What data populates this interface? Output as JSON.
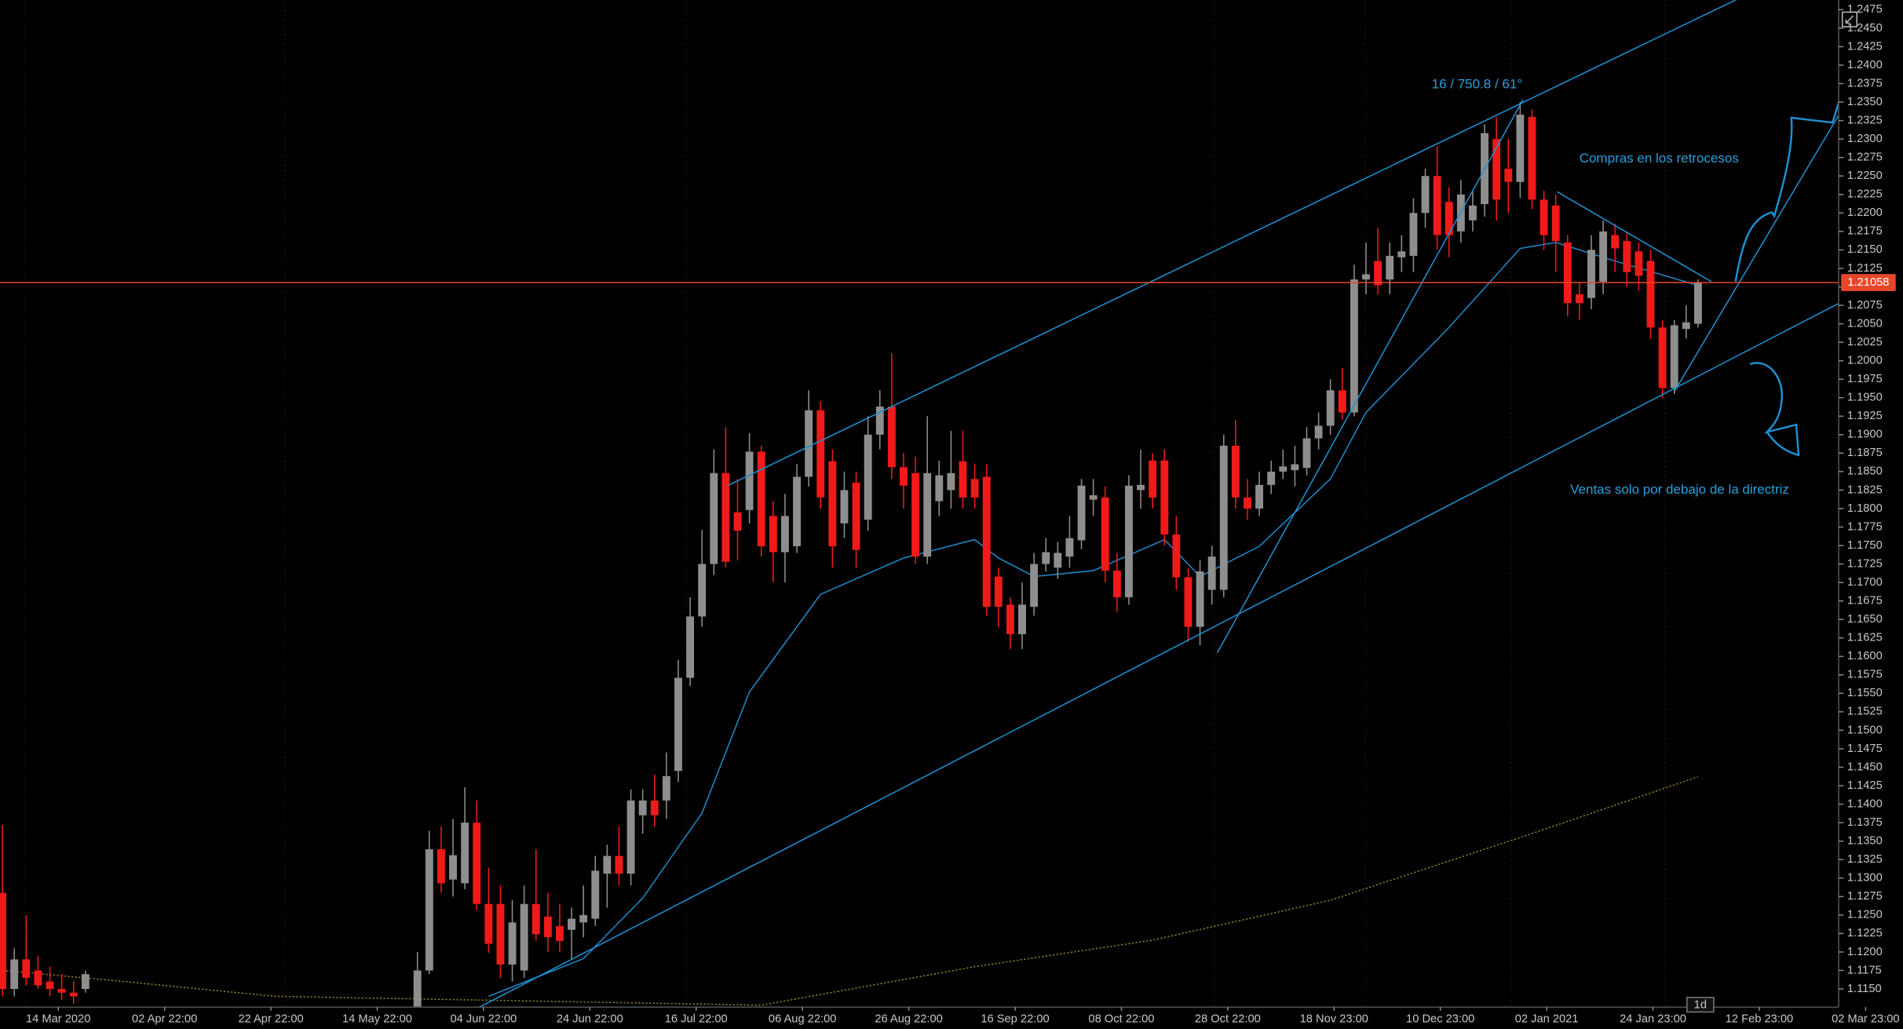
{
  "chart_data": {
    "type": "candlestick",
    "up_color": "#8e8e8e",
    "down_color": "#f01a1a",
    "ylim": [
      1.11254,
      1.24881
    ],
    "yticks": [
      {
        "value": 1.115,
        "label": "1.1150"
      },
      1.1175,
      {
        "value": 1.12,
        "label": "1.1200"
      },
      1.1225,
      {
        "value": 1.125,
        "label": "1.1250"
      },
      1.1275,
      {
        "value": 1.13,
        "label": "1.1300"
      },
      1.1325,
      {
        "value": 1.135,
        "label": "1.1350"
      },
      1.1375,
      {
        "value": 1.14,
        "label": "1.1400"
      },
      1.1425,
      {
        "value": 1.145,
        "label": "1.1450"
      },
      1.1475,
      {
        "value": 1.15,
        "label": "1.1500"
      },
      1.1525,
      {
        "value": 1.155,
        "label": "1.1550"
      },
      1.1575,
      {
        "value": 1.16,
        "label": "1.1600"
      },
      1.1625,
      {
        "value": 1.165,
        "label": "1.1650"
      },
      1.1675,
      {
        "value": 1.17,
        "label": "1.1700"
      },
      1.1725,
      {
        "value": 1.175,
        "label": "1.1750"
      },
      1.1775,
      {
        "value": 1.18,
        "label": "1.1800"
      },
      1.1825,
      {
        "value": 1.185,
        "label": "1.1850"
      },
      1.1875,
      {
        "value": 1.19,
        "label": "1.1900"
      },
      1.1925,
      {
        "value": 1.195,
        "label": "1.1950"
      },
      1.1975,
      {
        "value": 1.2,
        "label": "1.2000"
      },
      1.2025,
      {
        "value": 1.205,
        "label": "1.2050"
      },
      1.2075,
      {
        "value": 1.21,
        "label": "1.2100"
      },
      1.2125,
      {
        "value": 1.215,
        "label": "1.2150"
      },
      1.2175,
      {
        "value": 1.22,
        "label": "1.2200"
      },
      1.2225,
      {
        "value": 1.225,
        "label": "1.2250"
      },
      1.2275,
      {
        "value": 1.23,
        "label": "1.2300"
      },
      1.2325,
      {
        "value": 1.235,
        "label": "1.2350"
      },
      1.2375,
      {
        "value": 1.24,
        "label": "1.2400"
      },
      1.2425,
      {
        "value": 1.245,
        "label": "1.2450"
      },
      1.2475
    ],
    "x_labels": [
      "14 Mar 2020",
      "02 Apr 22:00",
      "22 Apr 22:00",
      "14 May 22:00",
      "04 Jun 22:00",
      "24 Jun 22:00",
      "16 Jul 22:00",
      "06 Aug 22:00",
      "26 Aug 22:00",
      "16 Sep 22:00",
      "08 Oct 22:00",
      "28 Oct 22:00",
      "18 Nov 23:00",
      "10 Dec 23:00",
      "02 Jan 2021",
      "24 Jan 23:00",
      "12 Feb 23:00",
      "02 Mar 23:00"
    ],
    "open": [
      1.128,
      1.115,
      1.119,
      1.1175,
      1.116,
      1.115,
      1.1145,
      1.115,
      null,
      null,
      null,
      null,
      null,
      null,
      null,
      null,
      null,
      null,
      null,
      null,
      null,
      null,
      null,
      null,
      null,
      null,
      null,
      null,
      null,
      null,
      null,
      null,
      null,
      null,
      null,
      1.112,
      1.1175,
      1.1339,
      1.1298,
      1.1293,
      1.1375,
      1.1265,
      1.1265,
      1.1183,
      1.1175,
      1.1265,
      1.1248,
      1.1235,
      1.123,
      1.124,
      1.1245,
      1.1306,
      1.133,
      1.1306,
      1.1385,
      1.1405,
      1.1405,
      1.1445,
      1.1571,
      1.1654,
      1.1725,
      1.1848,
      1.1795,
      1.1798,
      1.1877,
      1.179,
      1.1741,
      1.1749,
      1.1843,
      1.1933,
      1.1864,
      1.178,
      1.1835,
      1.1785,
      1.19,
      1.1938,
      1.1856,
      1.1848,
      1.1735,
      1.181,
      1.1825,
      1.1864,
      1.184,
      1.1843,
      1.1708,
      1.167,
      1.163,
      1.1667,
      1.1725,
      1.172,
      1.1735,
      1.1757,
      1.1812,
      1.1815,
      1.1716,
      1.168,
      1.1825,
      1.1865,
      1.1865,
      1.1765,
      1.1707,
      1.164,
      1.169,
      1.169,
      1.1885,
      1.1815,
      1.18,
      1.1832,
      1.185,
      1.1852,
      1.1855,
      1.1895,
      1.1912,
      1.196,
      1.193,
      1.211,
      1.2135,
      1.211,
      1.214,
      1.2142,
      1.22,
      1.225,
      1.2215,
      1.2175,
      1.219,
      1.2212,
      1.23,
      1.226,
      1.2242,
      1.233,
      1.2218,
      1.221,
      1.216,
      1.209,
      1.2085,
      1.2107,
      1.217,
      1.2162,
      1.2148,
      1.2135,
      1.2045,
      1.1963,
      1.2043,
      1.205
    ],
    "high": [
      1.1372,
      1.1205,
      1.125,
      1.1195,
      1.118,
      1.117,
      1.116,
      1.1175,
      null,
      null,
      null,
      null,
      null,
      null,
      null,
      null,
      null,
      null,
      null,
      null,
      null,
      null,
      null,
      null,
      null,
      null,
      null,
      null,
      null,
      null,
      null,
      null,
      null,
      null,
      null,
      1.12,
      1.1364,
      1.137,
      1.138,
      1.1423,
      1.1405,
      1.1314,
      1.129,
      1.127,
      1.129,
      1.1339,
      1.128,
      1.1265,
      1.126,
      1.129,
      1.133,
      1.1345,
      1.137,
      1.142,
      1.142,
      1.144,
      1.147,
      1.1595,
      1.168,
      1.1771,
      1.188,
      1.191,
      1.184,
      1.1902,
      1.1885,
      1.181,
      1.182,
      1.186,
      1.196,
      1.1945,
      1.188,
      1.185,
      1.185,
      1.1925,
      1.196,
      1.201,
      1.1875,
      1.187,
      1.1925,
      1.1865,
      1.1905,
      1.1905,
      1.186,
      1.186,
      1.172,
      1.168,
      1.17,
      1.174,
      1.176,
      1.1755,
      1.179,
      1.184,
      1.184,
      1.183,
      1.174,
      1.1845,
      1.188,
      1.1875,
      1.188,
      1.179,
      1.172,
      1.173,
      1.175,
      1.19,
      1.192,
      1.184,
      1.185,
      1.1865,
      1.188,
      1.1885,
      1.191,
      1.193,
      1.1975,
      1.199,
      1.213,
      1.216,
      1.218,
      1.216,
      1.217,
      1.222,
      1.226,
      1.229,
      1.2235,
      1.2245,
      1.223,
      1.232,
      1.233,
      1.23,
      1.235,
      1.234,
      1.223,
      1.2225,
      1.217,
      1.2105,
      1.217,
      1.219,
      1.2185,
      1.2175,
      1.216,
      1.215,
      1.2055,
      1.2055,
      1.2075,
      1.211
    ],
    "low": [
      1.114,
      1.114,
      1.1155,
      1.115,
      1.114,
      1.1135,
      1.113,
      1.1145,
      null,
      null,
      null,
      null,
      null,
      null,
      null,
      null,
      null,
      null,
      null,
      null,
      null,
      null,
      null,
      null,
      null,
      null,
      null,
      null,
      null,
      null,
      null,
      null,
      null,
      null,
      null,
      1.111,
      1.117,
      1.128,
      1.1275,
      1.1285,
      1.1257,
      1.1199,
      1.1165,
      1.116,
      1.1165,
      1.1215,
      1.12,
      1.12,
      1.119,
      1.122,
      1.1235,
      1.126,
      1.129,
      1.129,
      1.136,
      1.137,
      1.138,
      1.143,
      1.156,
      1.164,
      1.171,
      1.172,
      1.173,
      1.178,
      1.1735,
      1.17,
      1.17,
      1.174,
      1.183,
      1.18,
      1.172,
      1.176,
      1.172,
      1.177,
      1.188,
      1.184,
      1.18,
      1.1725,
      1.1725,
      1.179,
      1.18,
      1.18,
      1.18,
      1.1655,
      1.164,
      1.161,
      1.161,
      1.1655,
      1.1715,
      1.1705,
      1.172,
      1.1745,
      1.179,
      1.17,
      1.166,
      1.167,
      1.18,
      1.18,
      1.175,
      1.169,
      1.162,
      1.1615,
      1.167,
      1.168,
      1.18,
      1.1785,
      1.179,
      1.182,
      1.184,
      1.183,
      1.1845,
      1.188,
      1.19,
      1.192,
      1.1925,
      1.209,
      1.209,
      1.209,
      1.212,
      1.212,
      1.218,
      1.215,
      1.214,
      1.216,
      1.2175,
      1.2195,
      1.219,
      1.22,
      1.222,
      1.2205,
      1.215,
      1.212,
      1.206,
      1.2055,
      1.207,
      1.209,
      1.212,
      1.21,
      1.2095,
      1.203,
      1.195,
      1.1955,
      1.203,
      1.2045
    ],
    "close": [
      1.115,
      1.119,
      1.1165,
      1.1155,
      1.115,
      1.1145,
      1.114,
      1.117,
      null,
      null,
      null,
      null,
      null,
      null,
      null,
      null,
      null,
      null,
      null,
      null,
      null,
      null,
      null,
      null,
      null,
      null,
      null,
      null,
      null,
      null,
      null,
      null,
      null,
      null,
      null,
      1.1175,
      1.1339,
      1.1293,
      1.1331,
      1.1375,
      1.1265,
      1.1211,
      1.1183,
      1.124,
      1.1265,
      1.1224,
      1.122,
      1.1215,
      1.1245,
      1.125,
      1.131,
      1.133,
      1.1306,
      1.1405,
      1.1405,
      1.1385,
      1.1438,
      1.1571,
      1.1654,
      1.1725,
      1.1848,
      1.1728,
      1.177,
      1.1877,
      1.1749,
      1.1741,
      1.179,
      1.1843,
      1.1933,
      1.1815,
      1.1749,
      1.1825,
      1.1744,
      1.19,
      1.1938,
      1.1856,
      1.1831,
      1.1735,
      1.1848,
      1.1845,
      1.1848,
      1.1815,
      1.1815,
      1.1667,
      1.1667,
      1.163,
      1.167,
      1.1725,
      1.1741,
      1.174,
      1.176,
      1.1831,
      1.1818,
      1.1716,
      1.168,
      1.1831,
      1.1832,
      1.1815,
      1.1765,
      1.1707,
      1.164,
      1.1715,
      1.1735,
      1.1885,
      1.1815,
      1.18,
      1.1832,
      1.185,
      1.1857,
      1.186,
      1.1895,
      1.1912,
      1.196,
      1.193,
      1.211,
      1.2117,
      1.2102,
      1.2142,
      1.2148,
      1.22,
      1.225,
      1.217,
      1.217,
      1.2225,
      1.221,
      1.2308,
      1.2218,
      1.2242,
      1.2333,
      1.2218,
      1.217,
      1.2162,
      1.2078,
      1.2078,
      1.215,
      1.2175,
      1.2152,
      1.212,
      1.2115,
      1.2045,
      1.1963,
      1.2048,
      1.2052,
      1.2106
    ],
    "ma_lines": [
      {
        "color": "#1e88c8",
        "x": [
          41,
          49,
          54,
          59,
          63,
          69,
          76,
          82,
          84,
          87,
          92,
          98,
          101,
          106,
          112,
          115,
          122,
          128,
          131,
          136,
          143
        ],
        "values": [
          1.114,
          1.1191,
          1.1273,
          1.1388,
          1.1552,
          1.1684,
          1.1733,
          1.1758,
          1.1733,
          1.1708,
          1.1716,
          1.1758,
          1.1708,
          1.1749,
          1.184,
          1.193,
          1.2045,
          1.2152,
          1.216,
          1.2135,
          1.2102
        ]
      },
      {
        "color": "#8a7a2a",
        "x": [
          0,
          9,
          23,
          64,
          82,
          97,
          112,
          128,
          143
        ],
        "values": [
          1.1175,
          1.1162,
          1.114,
          1.1128,
          1.118,
          1.1216,
          1.127,
          1.1355,
          1.1437
        ]
      }
    ],
    "last_price": 1.21058,
    "annotations": [
      "16 / 750.8 / 61°",
      "Compras en los retrocesos",
      "Ventas solo por debajo de la directriz"
    ],
    "timeframe": "1d"
  }
}
